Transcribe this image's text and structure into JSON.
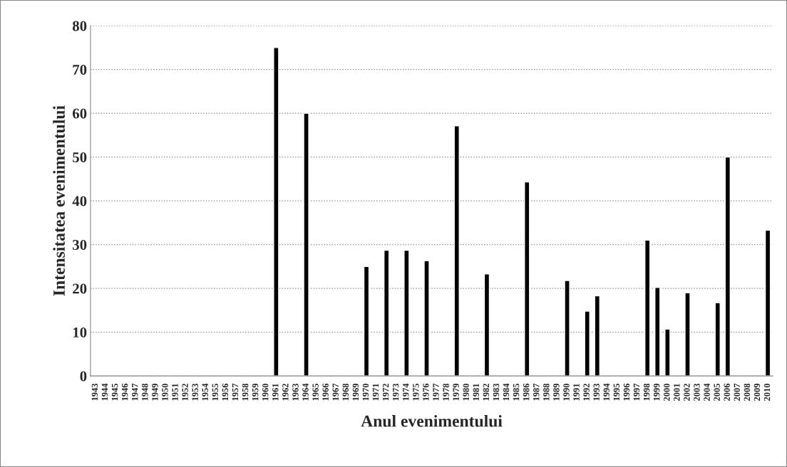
{
  "chart_data": {
    "type": "bar",
    "xlabel": "Anul evenimentului",
    "ylabel": "Intensitatea evenimentului",
    "categories": [
      "1943",
      "1944",
      "1945",
      "1946",
      "1947",
      "1948",
      "1949",
      "1950",
      "1951",
      "1952",
      "1953",
      "1954",
      "1955",
      "1956",
      "1957",
      "1958",
      "1959",
      "1960",
      "1961",
      "1962",
      "1963",
      "1964",
      "1965",
      "1966",
      "1967",
      "1968",
      "1969",
      "1970",
      "1971",
      "1972",
      "1973",
      "1974",
      "1975",
      "1976",
      "1977",
      "1978",
      "1979",
      "1980",
      "1981",
      "1982",
      "1983",
      "1984",
      "1985",
      "1986",
      "1987",
      "1988",
      "1989",
      "1990",
      "1991",
      "1992",
      "1993",
      "1994",
      "1995",
      "1996",
      "1997",
      "1998",
      "1999",
      "2000",
      "2001",
      "2002",
      "2003",
      "2004",
      "2005",
      "2006",
      "2007",
      "2008",
      "2009",
      "2010"
    ],
    "values": [
      null,
      null,
      null,
      null,
      null,
      null,
      null,
      null,
      null,
      null,
      null,
      null,
      null,
      null,
      null,
      null,
      null,
      null,
      75,
      null,
      null,
      60,
      null,
      null,
      null,
      null,
      null,
      25,
      null,
      28.7,
      null,
      28.7,
      null,
      26.3,
      null,
      null,
      57.1,
      null,
      null,
      23.3,
      null,
      null,
      null,
      44.3,
      null,
      null,
      null,
      21.8,
      null,
      14.8,
      18.3,
      null,
      null,
      null,
      null,
      31,
      20.2,
      10.7,
      null,
      19,
      null,
      null,
      16.7,
      50,
      null,
      null,
      null,
      33.3
    ],
    "color": "#000000",
    "ylim": [
      0,
      80
    ],
    "yticks": [
      0,
      10,
      20,
      30,
      40,
      50,
      60,
      70,
      80
    ],
    "grid": "y",
    "legend": false
  }
}
